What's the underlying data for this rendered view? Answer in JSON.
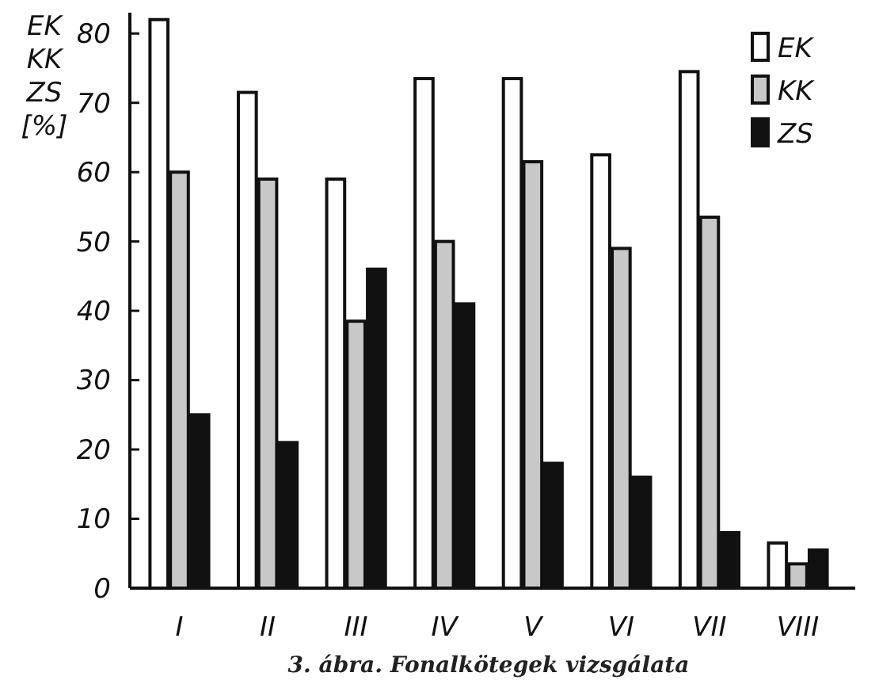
{
  "chart_data": {
    "type": "bar",
    "title": "3. ábra. Fonalkötegek vizsgálata",
    "ylabel": "EK KK ZS [%]",
    "categories": [
      "I",
      "II",
      "III",
      "IV",
      "V",
      "VI",
      "VII",
      "VIII"
    ],
    "series": [
      {
        "name": "EK",
        "color": "#ffffff",
        "values": [
          82,
          71.5,
          59,
          73.5,
          73.5,
          62.5,
          74.5,
          6.5
        ]
      },
      {
        "name": "KK",
        "color": "#c8c8c8",
        "values": [
          60,
          59,
          38.5,
          50,
          61.5,
          49,
          53.5,
          3.5
        ]
      },
      {
        "name": "ZS",
        "color": "#111111",
        "values": [
          25,
          21,
          46,
          41,
          18,
          16,
          8,
          5.5
        ]
      }
    ],
    "ylim": [
      0,
      83
    ],
    "yticks": [
      0,
      10,
      20,
      30,
      40,
      50,
      60,
      70,
      80
    ],
    "grid": false,
    "legend": "top right"
  }
}
